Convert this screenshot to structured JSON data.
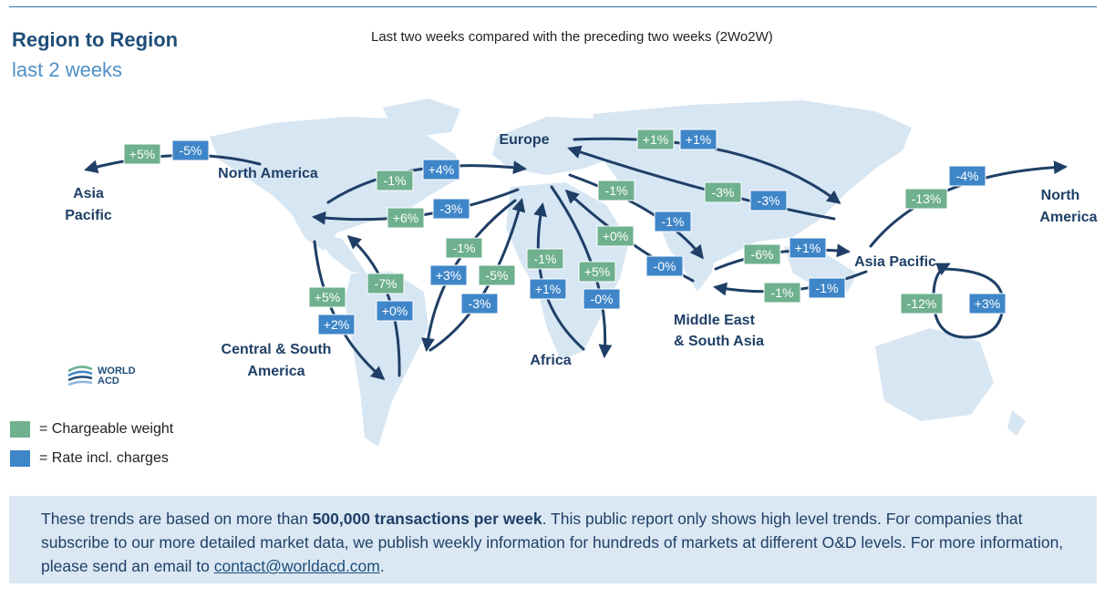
{
  "header": {
    "title": "Region to Region",
    "subtitle": "last 2 weeks",
    "caption": "Last two weeks compared with the preceding two weeks (2Wo2W)"
  },
  "colors": {
    "chargeable_weight": "#6fb08f",
    "rate": "#3f86c8",
    "arrow": "#1f3f66",
    "land": "#d7e6f3"
  },
  "regions": {
    "asia_pacific_west": [
      "Asia",
      "Pacific"
    ],
    "north_america": "North America",
    "europe": "Europe",
    "north_america_east": [
      "North",
      "America"
    ],
    "asia_pacific": "Asia Pacific",
    "middle_east": [
      "Middle East",
      "& South Asia"
    ],
    "africa": "Africa",
    "central_south_america": [
      "Central & South",
      "America"
    ]
  },
  "badges": [
    {
      "id": "na-ap-w",
      "text": "+5%",
      "kind": "chargeable_weight"
    },
    {
      "id": "na-ap-r",
      "text": "-5%",
      "kind": "rate"
    },
    {
      "id": "na-eu-w",
      "text": "-1%",
      "kind": "chargeable_weight"
    },
    {
      "id": "na-eu-r",
      "text": "+4%",
      "kind": "rate"
    },
    {
      "id": "eu-na-w",
      "text": "+6%",
      "kind": "chargeable_weight"
    },
    {
      "id": "eu-na-r",
      "text": "-3%",
      "kind": "rate"
    },
    {
      "id": "eu-ap-w",
      "text": "+1%",
      "kind": "chargeable_weight"
    },
    {
      "id": "eu-ap-r",
      "text": "+1%",
      "kind": "rate"
    },
    {
      "id": "ap-eu-w",
      "text": "-3%",
      "kind": "chargeable_weight"
    },
    {
      "id": "ap-eu-r",
      "text": "-3%",
      "kind": "rate"
    },
    {
      "id": "eu-me-w",
      "text": "-1%",
      "kind": "chargeable_weight"
    },
    {
      "id": "eu-me-r",
      "text": "-1%",
      "kind": "rate"
    },
    {
      "id": "me-eu-w",
      "text": "+0%",
      "kind": "chargeable_weight"
    },
    {
      "id": "me-eu-r",
      "text": "-0%",
      "kind": "rate"
    },
    {
      "id": "ap-na-w",
      "text": "-13%",
      "kind": "chargeable_weight"
    },
    {
      "id": "ap-na-r",
      "text": "-4%",
      "kind": "rate"
    },
    {
      "id": "me-ap-w",
      "text": "-6%",
      "kind": "chargeable_weight"
    },
    {
      "id": "me-ap-r",
      "text": "+1%",
      "kind": "rate"
    },
    {
      "id": "ap-me-w",
      "text": "-1%",
      "kind": "chargeable_weight"
    },
    {
      "id": "ap-me-r",
      "text": "-1%",
      "kind": "rate"
    },
    {
      "id": "ap-ap-w",
      "text": "-12%",
      "kind": "chargeable_weight"
    },
    {
      "id": "ap-ap-r",
      "text": "+3%",
      "kind": "rate"
    },
    {
      "id": "na-csa-w",
      "text": "+5%",
      "kind": "chargeable_weight"
    },
    {
      "id": "na-csa-r",
      "text": "+2%",
      "kind": "rate"
    },
    {
      "id": "csa-na-w",
      "text": "-7%",
      "kind": "chargeable_weight"
    },
    {
      "id": "csa-na-r",
      "text": "+0%",
      "kind": "rate"
    },
    {
      "id": "eu-csa-w",
      "text": "-1%",
      "kind": "chargeable_weight"
    },
    {
      "id": "eu-csa-r",
      "text": "+3%",
      "kind": "rate"
    },
    {
      "id": "csa-eu-w",
      "text": "-5%",
      "kind": "chargeable_weight"
    },
    {
      "id": "csa-eu-r",
      "text": "-3%",
      "kind": "rate"
    },
    {
      "id": "af-eu-w",
      "text": "-1%",
      "kind": "chargeable_weight"
    },
    {
      "id": "af-eu-r",
      "text": "+1%",
      "kind": "rate"
    },
    {
      "id": "eu-af-w",
      "text": "+5%",
      "kind": "chargeable_weight"
    },
    {
      "id": "eu-af-r",
      "text": "-0%",
      "kind": "rate"
    }
  ],
  "legend": {
    "weight": "= Chargeable weight",
    "rate": "= Rate incl. charges"
  },
  "logo": {
    "line1": "WORLD",
    "line2": "ACD"
  },
  "footer": {
    "text_before": "These trends are based on more than ",
    "bold": "500,000 transactions per week",
    "text_after": ". This public report only shows high level trends. For companies that subscribe to our more detailed market data, we publish weekly information for hundreds of markets at different O&D levels. For more information, please send an email to ",
    "email": "contact@worldacd.com",
    "end": "."
  }
}
